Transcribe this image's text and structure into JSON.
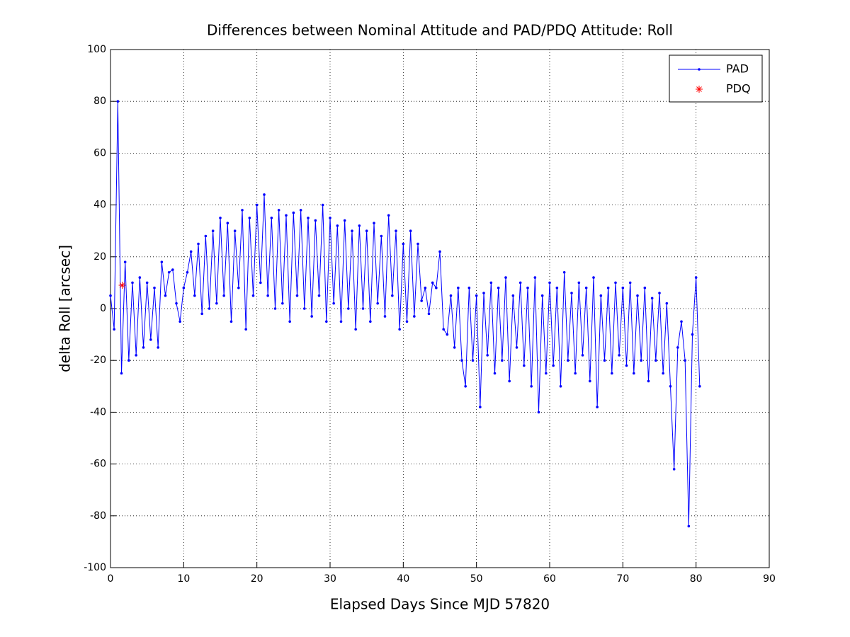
{
  "chart_data": {
    "type": "line",
    "title": "Differences between Nominal Attitude and PAD/PDQ Attitude: Roll",
    "x_label": "Elapsed Days Since MJD 57820",
    "y_label": "delta Roll [arcsec]",
    "xlim": [
      0,
      90
    ],
    "ylim": [
      -100,
      100
    ],
    "xticks": [
      0,
      10,
      20,
      30,
      40,
      50,
      60,
      70,
      80,
      90
    ],
    "yticks": [
      -100,
      -80,
      -60,
      -40,
      -20,
      0,
      20,
      40,
      60,
      80,
      100
    ],
    "grid": true,
    "legend": "upper right",
    "series": [
      {
        "name": "PAD",
        "color": "#0000ff",
        "x": [
          0,
          0.5,
          1,
          1.5,
          2,
          2.5,
          3,
          3.5,
          4,
          4.5,
          5,
          5.5,
          6,
          6.5,
          7,
          7.5,
          8,
          8.5,
          9,
          9.5,
          10,
          10.5,
          11,
          11.5,
          12,
          12.5,
          13,
          13.5,
          14,
          14.5,
          15,
          15.5,
          16,
          16.5,
          17,
          17.5,
          18,
          18.5,
          19,
          19.5,
          20,
          20.5,
          21,
          21.5,
          22,
          22.5,
          23,
          23.5,
          24,
          24.5,
          25,
          25.5,
          26,
          26.5,
          27,
          27.5,
          28,
          28.5,
          29,
          29.5,
          30,
          30.5,
          31,
          31.5,
          32,
          32.5,
          33,
          33.5,
          34,
          34.5,
          35,
          35.5,
          36,
          36.5,
          37,
          37.5,
          38,
          38.5,
          39,
          39.5,
          40,
          40.5,
          41,
          41.5,
          42,
          42.5,
          43,
          43.5,
          44,
          44.5,
          45,
          45.5,
          46,
          46.5,
          47,
          47.5,
          48,
          48.5,
          49,
          49.5,
          50,
          50.5,
          51,
          51.5,
          52,
          52.5,
          53,
          53.5,
          54,
          54.5,
          55,
          55.5,
          56,
          56.5,
          57,
          57.5,
          58,
          58.5,
          59,
          59.5,
          60,
          60.5,
          61,
          61.5,
          62,
          62.5,
          63,
          63.5,
          64,
          64.5,
          65,
          65.5,
          66,
          66.5,
          67,
          67.5,
          68,
          68.5,
          69,
          69.5,
          70,
          70.5,
          71,
          71.5,
          72,
          72.5,
          73,
          73.5,
          74,
          74.5,
          75,
          75.5,
          76,
          76.5,
          77,
          77.5,
          78,
          78.5,
          79,
          79.5,
          80,
          80.5
        ],
        "values": [
          5,
          -8,
          80,
          -25,
          18,
          -20,
          10,
          -18,
          12,
          -15,
          10,
          -12,
          8,
          -15,
          18,
          5,
          14,
          15,
          2,
          -5,
          8,
          14,
          22,
          5,
          25,
          -2,
          28,
          0,
          30,
          2,
          35,
          5,
          33,
          -5,
          30,
          8,
          38,
          -8,
          35,
          5,
          40,
          10,
          44,
          5,
          35,
          0,
          38,
          2,
          36,
          -5,
          37,
          5,
          38,
          0,
          35,
          -3,
          34,
          5,
          40,
          -5,
          35,
          2,
          32,
          -5,
          34,
          0,
          30,
          -8,
          32,
          0,
          30,
          -5,
          33,
          2,
          28,
          -3,
          36,
          5,
          30,
          -8,
          25,
          -5,
          30,
          -3,
          25,
          3,
          8,
          -2,
          10,
          8,
          22,
          -8,
          -10,
          5,
          -15,
          8,
          -20,
          -30,
          8,
          -20,
          5,
          -38,
          6,
          -18,
          10,
          -25,
          8,
          -20,
          12,
          -28,
          5,
          -15,
          10,
          -22,
          8,
          -30,
          12,
          -40,
          5,
          -25,
          10,
          -22,
          8,
          -30,
          14,
          -20,
          6,
          -25,
          10,
          -18,
          8,
          -28,
          12,
          -38,
          5,
          -20,
          8,
          -25,
          10,
          -18,
          8,
          -22,
          10,
          -25,
          5,
          -20,
          8,
          -28,
          4,
          -20,
          6,
          -25,
          2,
          -30,
          -62,
          -15,
          -5,
          -20,
          -84,
          -10,
          12,
          -30
        ]
      },
      {
        "name": "PDQ",
        "color": "#ff0000",
        "x": [
          1.6
        ],
        "values": [
          9
        ]
      }
    ]
  }
}
